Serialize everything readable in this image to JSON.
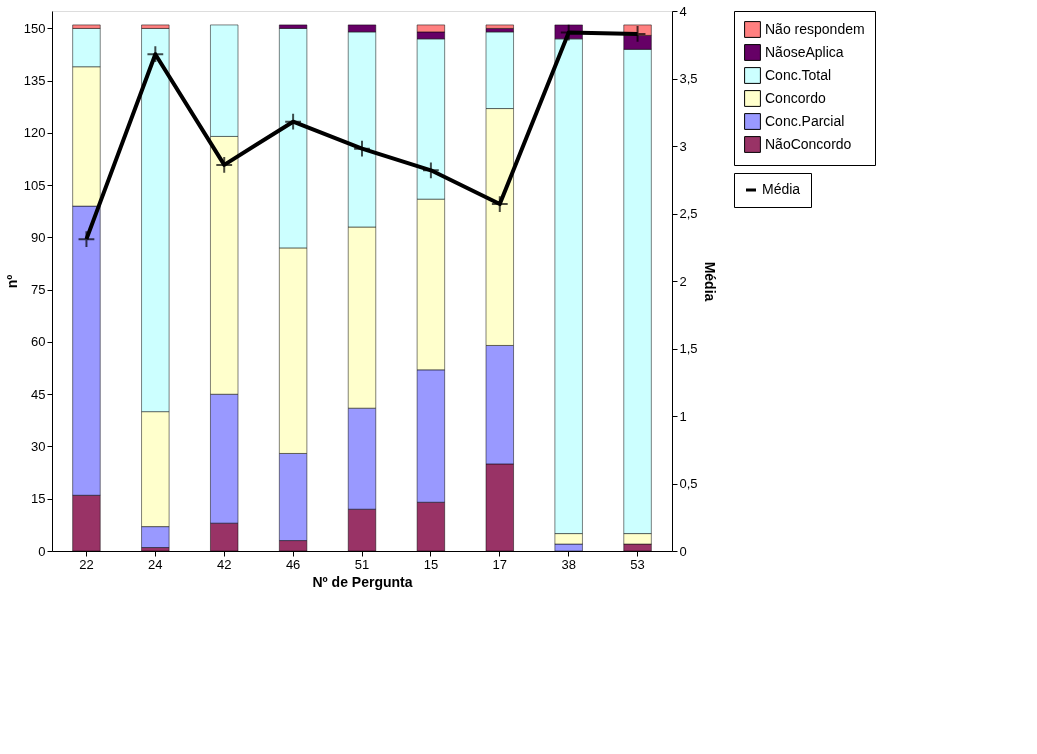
{
  "chart_data": {
    "type": "bar",
    "stacked": true,
    "xlabel": "Nº de Pergunta",
    "ylabel": "nº",
    "y2label": "Média",
    "categories": [
      "22",
      "24",
      "42",
      "46",
      "51",
      "15",
      "17",
      "38",
      "53"
    ],
    "series": [
      {
        "name": "NãoConcordo",
        "color": "#993366",
        "values": [
          16,
          1,
          8,
          3,
          12,
          14,
          25,
          0,
          2
        ]
      },
      {
        "name": "Conc.Parcial",
        "color": "#9999ff",
        "values": [
          83,
          6,
          37,
          25,
          29,
          38,
          34,
          2,
          0
        ]
      },
      {
        "name": "Concordo",
        "color": "#ffffcc",
        "values": [
          40,
          33,
          74,
          59,
          52,
          49,
          68,
          3,
          3
        ]
      },
      {
        "name": "Conc.Total",
        "color": "#ccffff",
        "values": [
          11,
          110,
          32,
          63,
          56,
          46,
          22,
          142,
          139
        ]
      },
      {
        "name": "NãoseAplica",
        "color": "#660066",
        "values": [
          0,
          0,
          0,
          1,
          2,
          2,
          1,
          4,
          4
        ]
      },
      {
        "name": "Não respondem",
        "color": "#ff8080",
        "values": [
          1,
          1,
          0,
          0,
          0,
          2,
          1,
          0,
          3
        ]
      },
      {
        "name": "Média",
        "type": "line",
        "axis": "y2",
        "color": "#000000",
        "values": [
          2.31,
          3.68,
          2.86,
          3.18,
          2.98,
          2.82,
          2.57,
          3.84,
          3.83
        ]
      }
    ],
    "ylim": [
      0,
      155
    ],
    "yticks": [
      0,
      15,
      30,
      45,
      60,
      75,
      90,
      105,
      120,
      135,
      150
    ],
    "y2lim": [
      0,
      4
    ],
    "y2ticks": [
      0,
      {
        "value": 0.5,
        "label": "0,5"
      },
      1,
      {
        "value": 1.5,
        "label": "1,5"
      },
      2,
      {
        "value": 2.5,
        "label": "2,5"
      },
      3,
      {
        "value": 3.5,
        "label": "3,5"
      },
      4
    ],
    "marker": "cross",
    "legend": "right",
    "grid": false
  }
}
